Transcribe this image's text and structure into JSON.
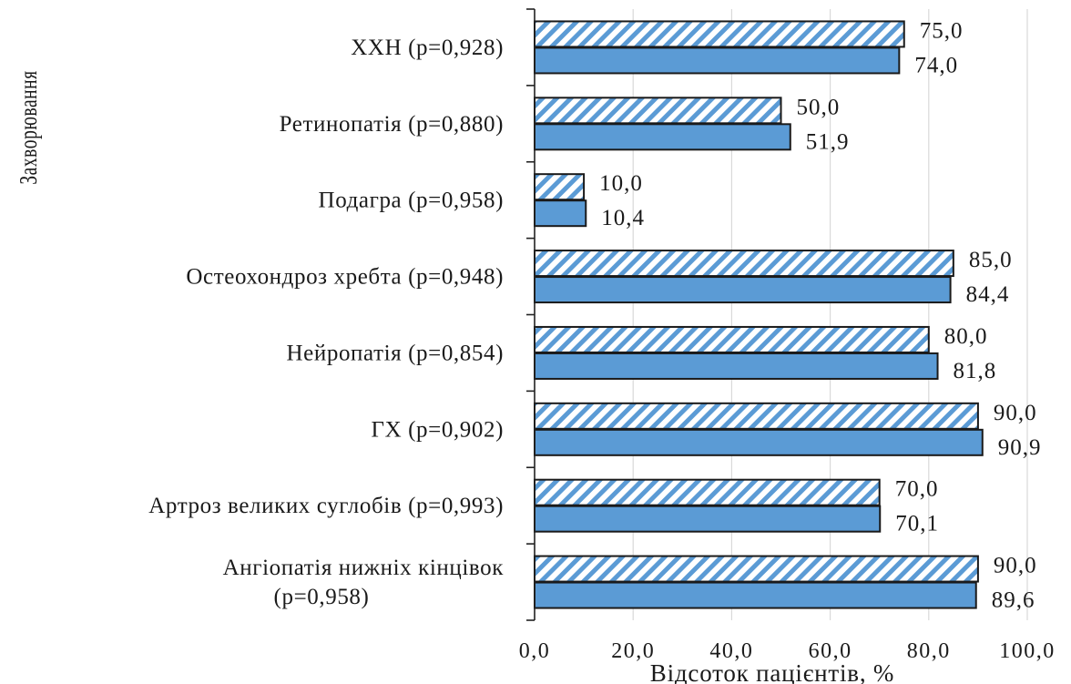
{
  "chart_data": {
    "type": "bar",
    "orientation": "horizontal",
    "xlabel": "Відсоток пацієнтів, %",
    "ylabel": "Захворювання",
    "xlim": [
      0,
      100
    ],
    "xticks": [
      "0,0",
      "20,0",
      "40,0",
      "60,0",
      "80,0",
      "100,0"
    ],
    "grid": true,
    "categories": [
      [
        "ХХН (p=0,928)"
      ],
      [
        "Ретинопатія (p=0,880)"
      ],
      [
        "Подагра (p=0,958)"
      ],
      [
        "Остеохондроз хребта (p=0,948)"
      ],
      [
        "Нейропатія (p=0,854)"
      ],
      [
        "ГХ (p=0,902)"
      ],
      [
        "Артроз великих суглобів (p=0,993)"
      ],
      [
        "Ангіопатія нижніх кінцівок",
        "(p=0,958)"
      ]
    ],
    "series": [
      {
        "pattern": "hatched",
        "color": "#5b9bd5",
        "values": [
          75.0,
          50.0,
          10.0,
          85.0,
          80.0,
          90.0,
          70.0,
          90.0
        ],
        "labels": [
          "75,0",
          "50,0",
          "10,0",
          "85,0",
          "80,0",
          "90,0",
          "70,0",
          "90,0"
        ]
      },
      {
        "pattern": "solid",
        "color": "#5b9bd5",
        "values": [
          74.0,
          51.9,
          10.4,
          84.4,
          81.8,
          90.9,
          70.1,
          89.6
        ],
        "labels": [
          "74,0",
          "51,9",
          "10,4",
          "84,4",
          "81,8",
          "90,9",
          "70,1",
          "89,6"
        ]
      }
    ]
  }
}
